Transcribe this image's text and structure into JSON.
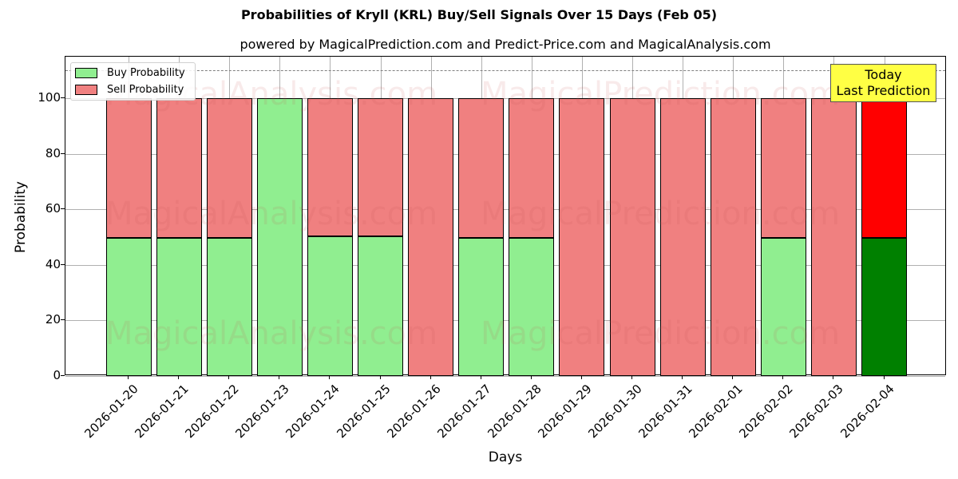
{
  "chart_data": {
    "type": "bar",
    "stacked": true,
    "title": "Probabilities of Kryll (KRL) Buy/Sell Signals Over 15 Days (Feb 05)",
    "subtitle": "powered by MagicalPrediction.com and Predict-Price.com and MagicalAnalysis.com",
    "xlabel": "Days",
    "ylabel": "Probability",
    "ylim": [
      0,
      115
    ],
    "yticks": [
      0,
      20,
      40,
      60,
      80,
      100
    ],
    "grid": true,
    "legend_position": "upper left",
    "reference_line": {
      "y": 110,
      "style": "dashed",
      "color": "#808080"
    },
    "categories": [
      "2026-01-20",
      "2026-01-21",
      "2026-01-22",
      "2026-01-23",
      "2026-01-24",
      "2026-01-25",
      "2026-01-26",
      "2026-01-27",
      "2026-01-28",
      "2026-01-29",
      "2026-01-30",
      "2026-01-31",
      "2026-02-01",
      "2026-02-02",
      "2026-02-03",
      "2026-02-04"
    ],
    "series": [
      {
        "name": "Buy Probability",
        "color": "#90ee90",
        "values": [
          49.7,
          49.7,
          49.7,
          100,
          50.3,
          50.3,
          0,
          49.7,
          49.7,
          0,
          0,
          0,
          0,
          49.7,
          0,
          49.7
        ]
      },
      {
        "name": "Sell Probability",
        "color": "#f08080",
        "values": [
          50.3,
          50.3,
          50.3,
          0,
          49.7,
          49.7,
          100,
          50.3,
          50.3,
          100,
          100,
          100,
          100,
          50.3,
          100,
          50.3
        ]
      }
    ],
    "highlight": {
      "index": 15,
      "buy_color": "#008000",
      "sell_color": "#ff0000"
    },
    "annotation": {
      "text": "Today\nLast Prediction",
      "line1": "Today",
      "line2": "Last Prediction",
      "background": "#ffff44"
    },
    "watermarks": [
      "MagicalAnalysis.com",
      "MagicalPrediction.com"
    ]
  }
}
